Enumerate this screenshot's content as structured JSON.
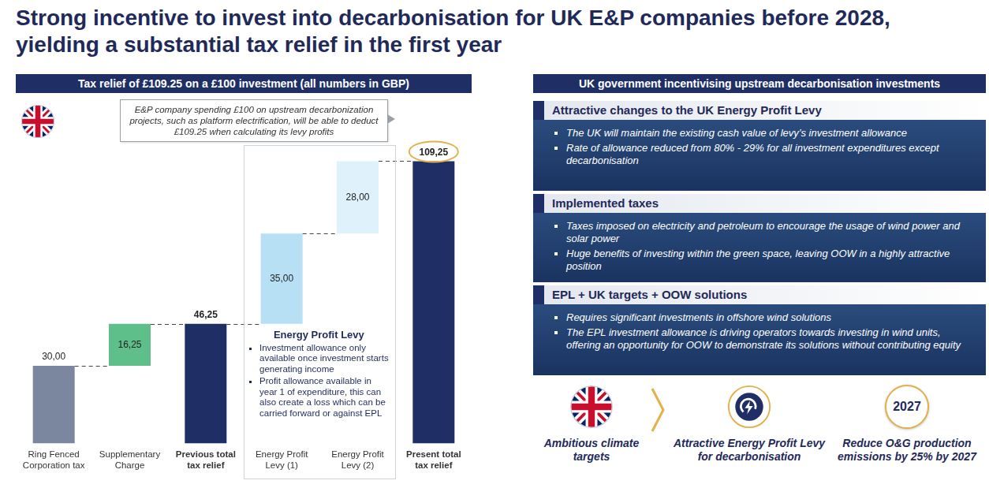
{
  "title": "Strong incentive to invest into decarbonisation for UK E&P companies before 2028, yielding a substantial tax relief in the first year",
  "chart_data": {
    "type": "waterfall",
    "title": "Tax relief of £109.25 on a £100 investment (all numbers in GBP)",
    "categories": [
      "Ring Fenced Corporation tax",
      "Supplementary Charge",
      "Previous total tax relief",
      "Energy Profit Levy (1)",
      "Energy Profit Levy (2)",
      "Present total tax relief"
    ],
    "values": [
      30,
      16.25,
      46.25,
      35,
      28,
      109.25
    ],
    "value_labels": [
      "30,00",
      "16,25",
      "46,25",
      "35,00",
      "28,00",
      "109,25"
    ],
    "colors": [
      "#7b879f",
      "#5fbf8b",
      "#1f2f66",
      "#b8e0f5",
      "#dff1fb",
      "#1f2f66"
    ],
    "ylim": [
      0,
      135
    ],
    "grid": false,
    "data_labels": true,
    "tick_labels": "x",
    "annotations": [
      {
        "text": "E&P company spending £100 on upstream decarbonization projects, such as platform electrification, will be able to deduct £109.25 when calculating its levy profits"
      },
      {
        "title": "Energy Profit Levy",
        "bullets": [
          "Investment allowance only available once investment starts generating income",
          "Profit allowance available in year 1 of expenditure, this can also create a loss which can be carried forward or against EPL"
        ]
      }
    ]
  },
  "right_panel": {
    "title": "UK government incentivising upstream decarbonisation investments",
    "sections": [
      {
        "title": "Attractive changes to the UK Energy Profit Levy",
        "bullets": [
          "The UK will maintain the existing cash value of levy’s investment allowance",
          "Rate of allowance reduced from 80% - 29% for all investment expenditures except decarbonisation"
        ]
      },
      {
        "title": "Implemented taxes",
        "bullets": [
          "Taxes imposed on electricity and petroleum to encourage the usage of wind power and solar power",
          "Huge benefits of investing within the green space, leaving OOW in a highly attractive position"
        ]
      },
      {
        "title": "EPL + UK targets + OOW solutions",
        "bullets": [
          "Requires significant investments in offshore wind solutions",
          "The EPL investment allowance is driving operators towards investing in wind units, offering an opportunity for OOW to demonstrate its solutions without contributing equity"
        ]
      }
    ],
    "footer": [
      {
        "label": "Ambitious climate targets"
      },
      {
        "label": "Attractive Energy Profit Levy for decarbonisation"
      },
      {
        "badge": "2027",
        "label": "Reduce O&G production emissions by 25% by 2027"
      }
    ]
  }
}
